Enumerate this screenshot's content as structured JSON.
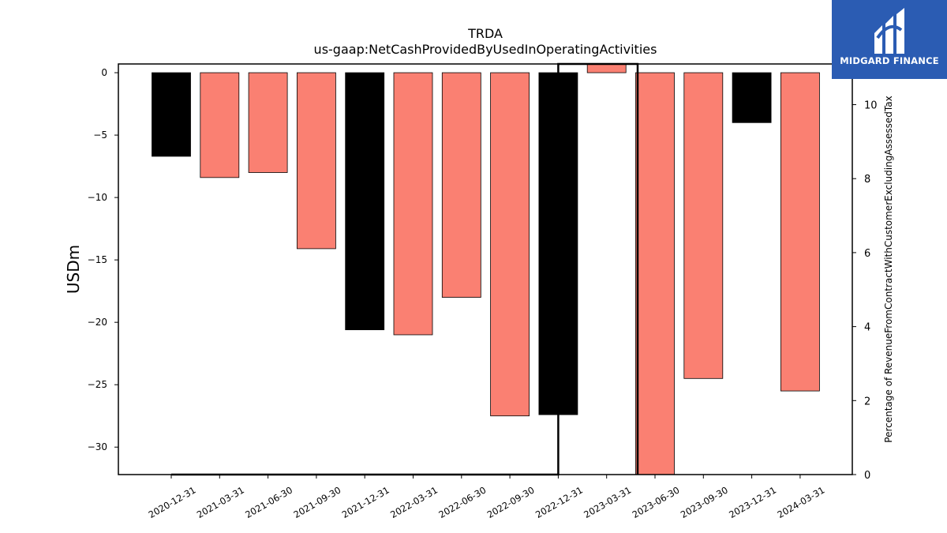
{
  "brand": {
    "name": "MIDGARD FINANCE",
    "bg_color": "#2b5cb3"
  },
  "chart_data": {
    "type": "bar",
    "title": "TRDA",
    "subtitle": "us-gaap:NetCashProvidedByUsedInOperatingActivities",
    "ylabel": "USDm",
    "ylabel_right": "Percentage of RevenueFromContractWithCustomerExcludingAssessedTax",
    "ylim": [
      -32.2,
      0.7
    ],
    "ylim_right": [
      0,
      11.1
    ],
    "yticks": [
      0,
      -5,
      -10,
      -15,
      -20,
      -25,
      -30
    ],
    "yticks_right": [
      0,
      2,
      4,
      6,
      8,
      10
    ],
    "grid": false,
    "categories": [
      "2020-12-31",
      "2021-03-31",
      "2021-06-30",
      "2021-09-30",
      "2021-12-31",
      "2022-03-31",
      "2022-06-30",
      "2022-09-30",
      "2022-12-31",
      "2023-03-31",
      "2023-06-30",
      "2023-09-30",
      "2023-12-31",
      "2024-03-31"
    ],
    "values": [
      -6.7,
      -8.4,
      -8.0,
      -14.1,
      -20.6,
      -21.0,
      -18.0,
      -27.5,
      -27.4,
      0.7,
      -32.2,
      -24.5,
      -4.0,
      -25.5
    ],
    "bar_colors": [
      "#000000",
      "#fa8072",
      "#fa8072",
      "#fa8072",
      "#000000",
      "#fa8072",
      "#fa8072",
      "#fa8072",
      "#000000",
      "#fa8072",
      "#fa8072",
      "#fa8072",
      "#000000",
      "#fa8072"
    ],
    "line_series": {
      "axis": "right",
      "x": [
        "2020-12-31",
        "2022-12-31",
        "2022-12-31",
        "2023-06-30",
        "2023-06-30"
      ],
      "y": [
        0,
        0,
        11.1,
        11.1,
        0
      ]
    }
  }
}
